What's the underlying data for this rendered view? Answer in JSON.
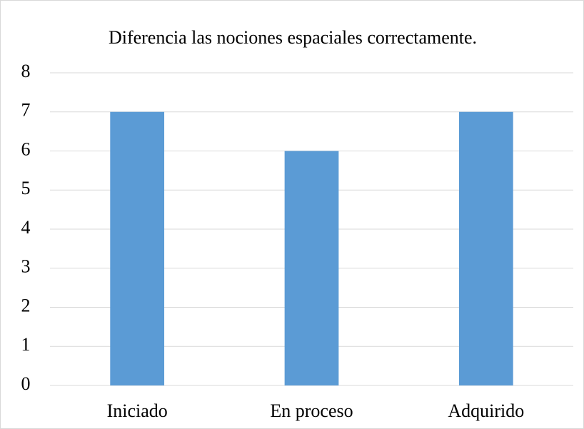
{
  "chart_data": {
    "type": "bar",
    "title": "Diferencia las nociones espaciales correctamente.",
    "categories": [
      "Iniciado",
      "En proceso",
      "Adquirido"
    ],
    "values": [
      7,
      6,
      7
    ],
    "color": "#5b9bd5",
    "ylim": [
      0,
      8
    ],
    "yticks": [
      0,
      1,
      2,
      3,
      4,
      5,
      6,
      7,
      8
    ],
    "grid": true
  }
}
